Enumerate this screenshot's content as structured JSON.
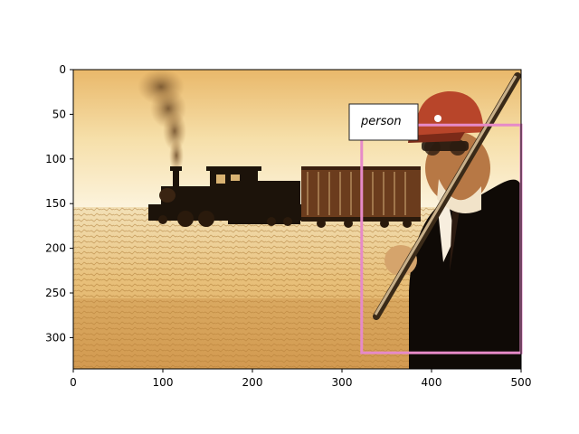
{
  "axes": {
    "x_ticks": [
      "0",
      "100",
      "200",
      "300",
      "400",
      "500"
    ],
    "y_ticks": [
      "0",
      "50",
      "100",
      "150",
      "200",
      "250",
      "300"
    ],
    "x_range": [
      0,
      500
    ],
    "y_range": [
      335,
      0
    ],
    "frame_color": "#000000"
  },
  "image_scene": {
    "description_kind": "sepia photo",
    "elements": [
      "steam-locomotive",
      "freight-car",
      "smoke-plume",
      "prairie",
      "man-with-cap",
      "pole"
    ]
  },
  "detection": {
    "label": "person",
    "box_color": "#e68ac8",
    "box_data": {
      "x_min": 322,
      "y_min": 62,
      "x_max": 500,
      "y_max": 317
    }
  },
  "colors": {
    "sky_top": "#f4d9a1",
    "sky_bottom": "#fbeed0",
    "ground_light": "#f1d79e",
    "ground_dark": "#9a6a2c",
    "train_dark": "#1c130a",
    "car_brown": "#6b3c1d",
    "cap_red": "#b8452a"
  }
}
